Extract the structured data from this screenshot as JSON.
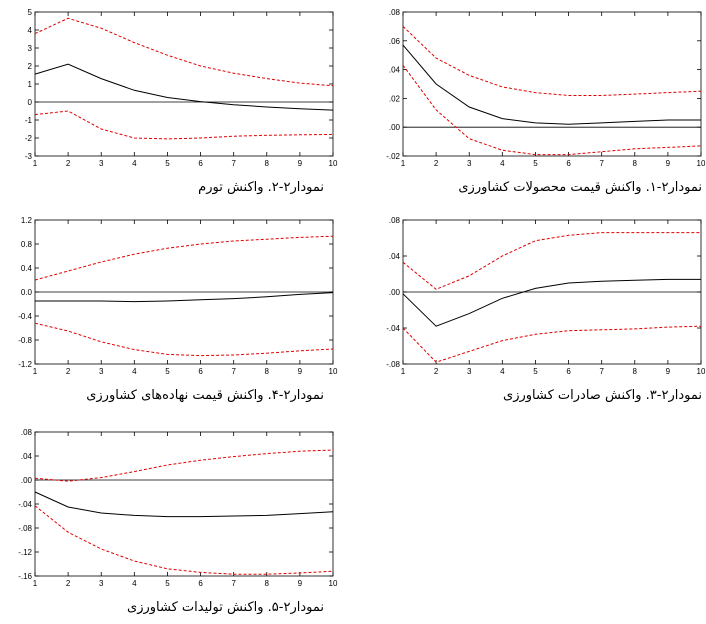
{
  "chart_data": [
    {
      "type": "line",
      "caption": "نمودار۲-۱. واکنش قیمت محصولات کشاورزی",
      "x": [
        1,
        2,
        3,
        4,
        5,
        6,
        7,
        8,
        9,
        10
      ],
      "x_tick_labels": [
        "1",
        "2",
        "3",
        "4",
        "5",
        "6",
        "7",
        "8",
        "9",
        "10"
      ],
      "ylim": [
        -0.02,
        0.08
      ],
      "y_ticks": [
        -0.02,
        0.0,
        0.02,
        0.04,
        0.06,
        0.08
      ],
      "y_tick_labels": [
        "-.02",
        ".00",
        ".02",
        ".04",
        ".06",
        ".08"
      ],
      "series": [
        {
          "role": "response",
          "color": "#000000",
          "style": "solid",
          "values": [
            0.057,
            0.03,
            0.014,
            0.006,
            0.003,
            0.002,
            0.003,
            0.004,
            0.005,
            0.005
          ]
        },
        {
          "role": "upper",
          "color": "#e00000",
          "style": "dashed",
          "values": [
            0.07,
            0.048,
            0.036,
            0.028,
            0.024,
            0.022,
            0.022,
            0.023,
            0.024,
            0.025
          ]
        },
        {
          "role": "lower",
          "color": "#e00000",
          "style": "dashed",
          "values": [
            0.043,
            0.012,
            -0.008,
            -0.016,
            -0.019,
            -0.019,
            -0.017,
            -0.015,
            -0.014,
            -0.013
          ]
        }
      ]
    },
    {
      "type": "line",
      "caption": "نمودار۲-۲. واکنش تورم",
      "x": [
        1,
        2,
        3,
        4,
        5,
        6,
        7,
        8,
        9,
        10
      ],
      "x_tick_labels": [
        "1",
        "2",
        "3",
        "4",
        "5",
        "6",
        "7",
        "8",
        "9",
        "10"
      ],
      "ylim": [
        -3,
        5
      ],
      "y_ticks": [
        -3,
        -2,
        -1,
        0,
        1,
        2,
        3,
        4,
        5
      ],
      "y_tick_labels": [
        "-3",
        "-2",
        "-1",
        "0",
        "1",
        "2",
        "3",
        "4",
        "5"
      ],
      "series": [
        {
          "role": "response",
          "color": "#000000",
          "style": "solid",
          "values": [
            1.55,
            2.1,
            1.3,
            0.65,
            0.25,
            0.02,
            -0.15,
            -0.28,
            -0.38,
            -0.45
          ]
        },
        {
          "role": "upper",
          "color": "#e00000",
          "style": "dashed",
          "values": [
            3.8,
            4.65,
            4.1,
            3.3,
            2.6,
            2.0,
            1.6,
            1.3,
            1.05,
            0.9
          ]
        },
        {
          "role": "lower",
          "color": "#e00000",
          "style": "dashed",
          "values": [
            -0.7,
            -0.5,
            -1.5,
            -2.0,
            -2.05,
            -2.0,
            -1.9,
            -1.85,
            -1.82,
            -1.8
          ]
        }
      ]
    },
    {
      "type": "line",
      "caption": "نمودار۲-۳. واکنش صادرات کشاورزی",
      "x": [
        1,
        2,
        3,
        4,
        5,
        6,
        7,
        8,
        9,
        10
      ],
      "x_tick_labels": [
        "1",
        "2",
        "3",
        "4",
        "5",
        "6",
        "7",
        "8",
        "9",
        "10"
      ],
      "ylim": [
        -0.08,
        0.08
      ],
      "y_ticks": [
        -0.08,
        -0.04,
        0.0,
        0.04,
        0.08
      ],
      "y_tick_labels": [
        "-.08",
        "-.04",
        ".00",
        ".04",
        ".08"
      ],
      "series": [
        {
          "role": "response",
          "color": "#000000",
          "style": "solid",
          "values": [
            -0.002,
            -0.038,
            -0.024,
            -0.007,
            0.004,
            0.01,
            0.012,
            0.013,
            0.014,
            0.014
          ]
        },
        {
          "role": "upper",
          "color": "#e00000",
          "style": "dashed",
          "values": [
            0.033,
            0.003,
            0.018,
            0.04,
            0.057,
            0.063,
            0.066,
            0.066,
            0.066,
            0.066
          ]
        },
        {
          "role": "lower",
          "color": "#e00000",
          "style": "dashed",
          "values": [
            -0.04,
            -0.078,
            -0.066,
            -0.054,
            -0.047,
            -0.043,
            -0.042,
            -0.041,
            -0.039,
            -0.038
          ]
        }
      ]
    },
    {
      "type": "line",
      "caption": "نمودار۲-۴. واکنش قیمت نهاده‌های کشاورزی",
      "x": [
        1,
        2,
        3,
        4,
        5,
        6,
        7,
        8,
        9,
        10
      ],
      "x_tick_labels": [
        "1",
        "2",
        "3",
        "4",
        "5",
        "6",
        "7",
        "8",
        "9",
        "10"
      ],
      "ylim": [
        -1.2,
        1.2
      ],
      "y_ticks": [
        -1.2,
        -0.8,
        -0.4,
        0.0,
        0.4,
        0.8,
        1.2
      ],
      "y_tick_labels": [
        "-1.2",
        "-0.8",
        "-0.4",
        "0.0",
        "0.4",
        "0.8",
        "1.2"
      ],
      "series": [
        {
          "role": "response",
          "color": "#000000",
          "style": "solid",
          "values": [
            -0.15,
            -0.15,
            -0.15,
            -0.16,
            -0.15,
            -0.13,
            -0.11,
            -0.08,
            -0.04,
            -0.01
          ]
        },
        {
          "role": "upper",
          "color": "#e00000",
          "style": "dashed",
          "values": [
            0.2,
            0.35,
            0.5,
            0.63,
            0.73,
            0.8,
            0.85,
            0.88,
            0.91,
            0.93
          ]
        },
        {
          "role": "lower",
          "color": "#e00000",
          "style": "dashed",
          "values": [
            -0.52,
            -0.65,
            -0.83,
            -0.96,
            -1.04,
            -1.06,
            -1.05,
            -1.02,
            -0.98,
            -0.95
          ]
        }
      ]
    },
    {
      "type": "line",
      "caption": "نمودار۲-۵. واکنش تولیدات کشاورزی",
      "x": [
        1,
        2,
        3,
        4,
        5,
        6,
        7,
        8,
        9,
        10
      ],
      "x_tick_labels": [
        "1",
        "2",
        "3",
        "4",
        "5",
        "6",
        "7",
        "8",
        "9",
        "10"
      ],
      "ylim": [
        -0.16,
        0.08
      ],
      "y_ticks": [
        -0.16,
        -0.12,
        -0.08,
        -0.04,
        0.0,
        0.04,
        0.08
      ],
      "y_tick_labels": [
        "-.16",
        "-.12",
        "-.08",
        "-.04",
        ".00",
        ".04",
        ".08"
      ],
      "series": [
        {
          "role": "response",
          "color": "#000000",
          "style": "solid",
          "values": [
            -0.02,
            -0.045,
            -0.055,
            -0.059,
            -0.061,
            -0.061,
            -0.06,
            -0.059,
            -0.056,
            -0.053
          ]
        },
        {
          "role": "upper",
          "color": "#e00000",
          "style": "dashed",
          "values": [
            0.003,
            -0.002,
            0.004,
            0.014,
            0.025,
            0.033,
            0.039,
            0.044,
            0.048,
            0.05
          ]
        },
        {
          "role": "lower",
          "color": "#e00000",
          "style": "dashed",
          "values": [
            -0.043,
            -0.087,
            -0.115,
            -0.135,
            -0.148,
            -0.154,
            -0.157,
            -0.157,
            -0.155,
            -0.152
          ]
        }
      ]
    }
  ]
}
